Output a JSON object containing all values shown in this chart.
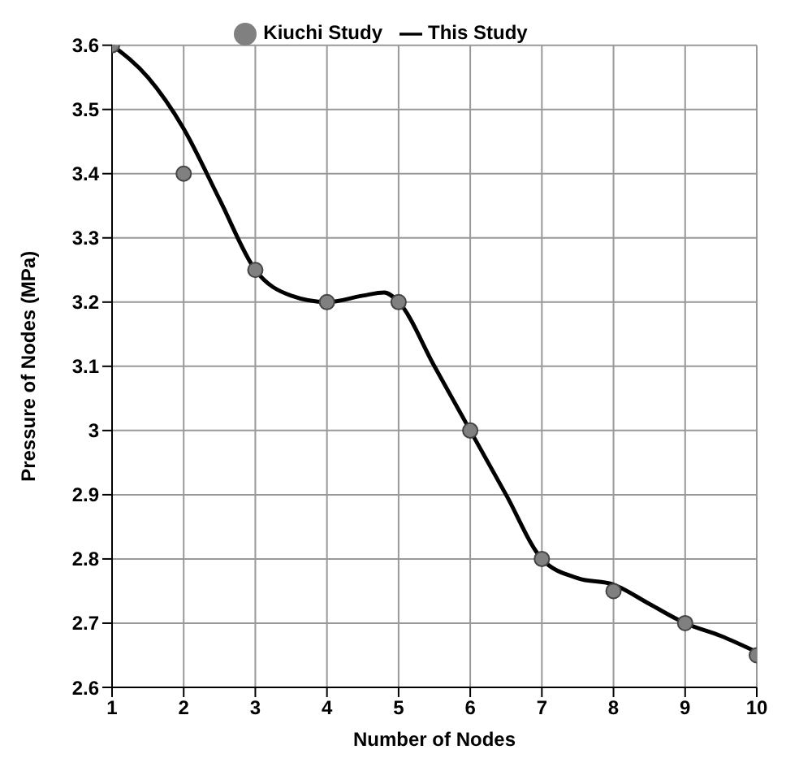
{
  "chart_data": {
    "type": "line",
    "xlabel": "Number of Nodes",
    "ylabel": "Pressure of Nodes (MPa)",
    "xlim": [
      1,
      10
    ],
    "xticks": [
      1,
      2,
      3,
      4,
      5,
      6,
      7,
      8,
      9,
      10
    ],
    "ylim": [
      2.6,
      3.6
    ],
    "yticks": [
      2.6,
      2.7,
      2.8,
      2.9,
      3,
      3.1,
      3.2,
      3.3,
      3.4,
      3.5,
      3.6
    ],
    "grid": true,
    "legend": "top",
    "series": [
      {
        "name": "Kiuchi Study",
        "type": "scatter",
        "marker": "circle",
        "color": "#808080",
        "x": [
          1,
          2,
          3,
          4,
          5,
          6,
          7,
          8,
          9,
          10
        ],
        "values": [
          3.6,
          3.4,
          3.25,
          3.2,
          3.2,
          3.0,
          2.8,
          2.75,
          2.7,
          2.65
        ]
      },
      {
        "name": "This Study",
        "type": "line",
        "color": "#000000",
        "x": [
          1,
          1.5,
          2,
          2.5,
          3,
          3.5,
          4,
          4.5,
          4.8,
          5,
          5.5,
          6,
          6.5,
          7,
          7.5,
          8,
          8.5,
          9,
          9.5,
          10
        ],
        "values": [
          3.6,
          3.55,
          3.47,
          3.36,
          3.25,
          3.21,
          3.2,
          3.21,
          3.215,
          3.2,
          3.1,
          3.0,
          2.9,
          2.8,
          2.77,
          2.76,
          2.73,
          2.7,
          2.68,
          2.655
        ]
      }
    ]
  }
}
